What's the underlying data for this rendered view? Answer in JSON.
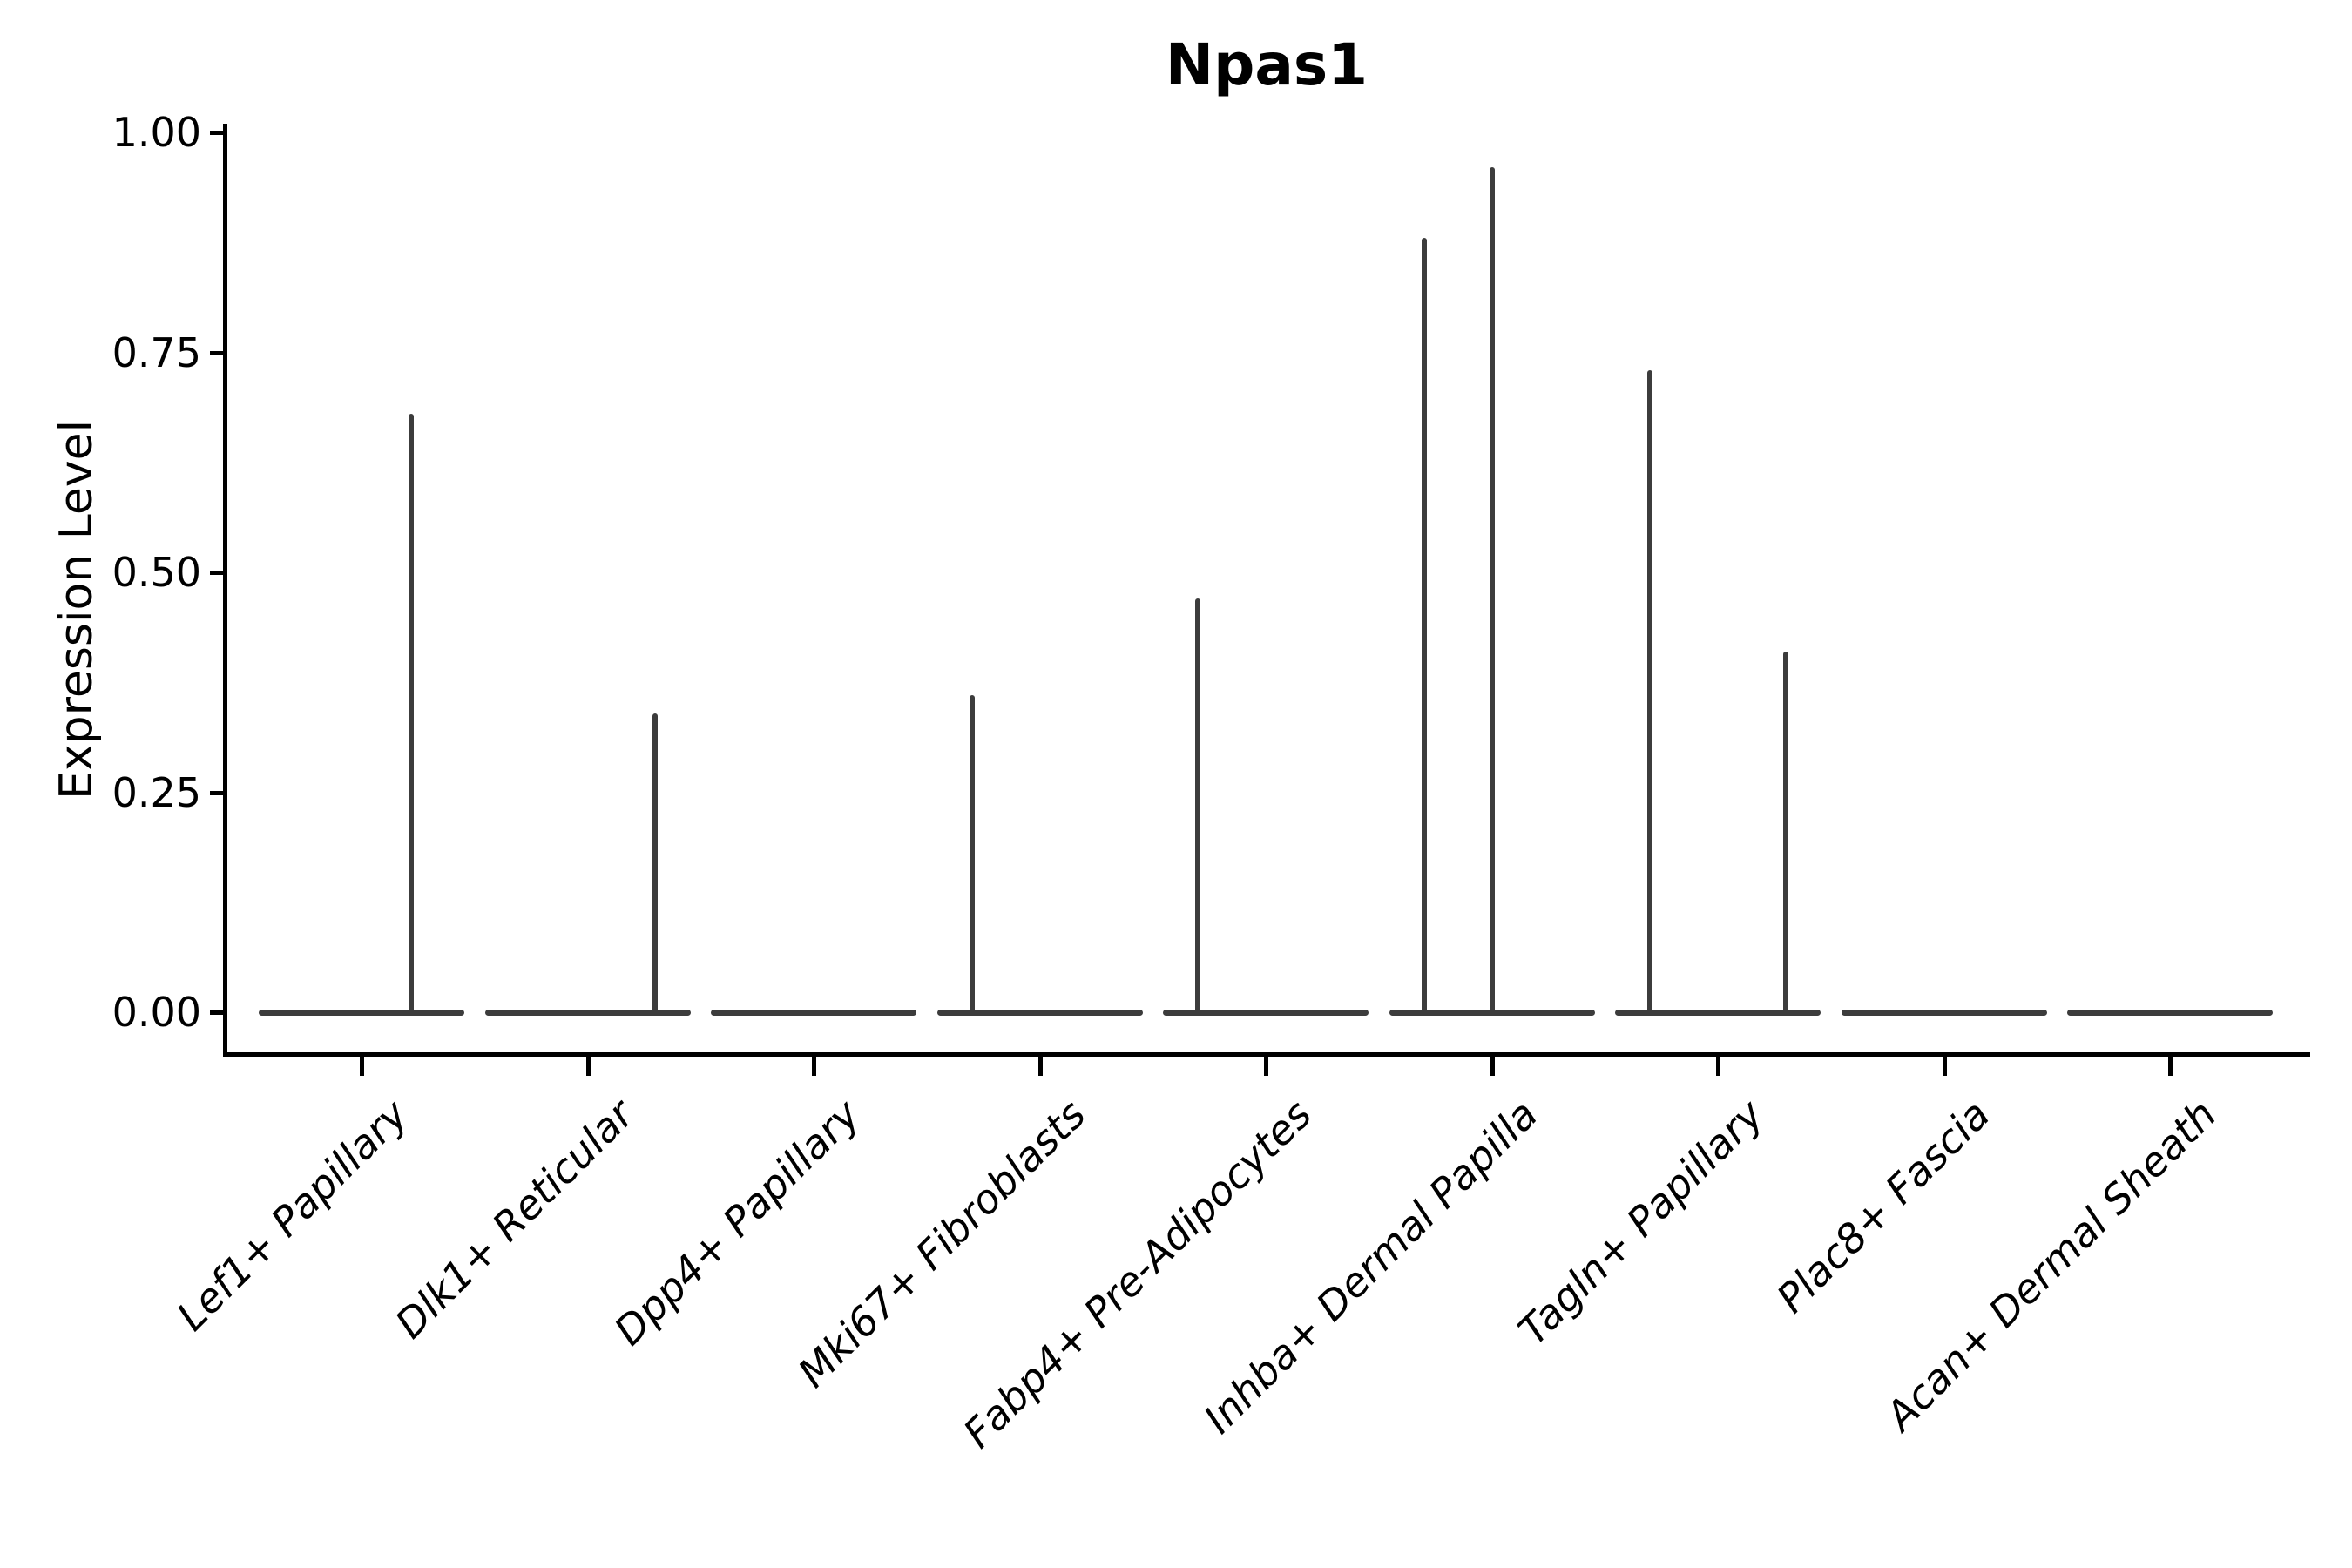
{
  "figure": {
    "title": "Npas1",
    "background": "#ffffff"
  },
  "chart_data": {
    "type": "violin",
    "title": "Npas1",
    "xlabel": "",
    "ylabel": "Expression Level",
    "ylim": [
      0,
      1.0
    ],
    "yticks": [
      1.0,
      0.75,
      0.5,
      0.25,
      0.0
    ],
    "ytick_labels": [
      "1.00",
      "0.75",
      "0.50",
      "0.25",
      "0.00"
    ],
    "grid": false,
    "legend": "none",
    "categories": [
      "Lef1+ Papillary",
      "Dlk1+ Reticular",
      "Dpp4+ Papillary",
      "Mki67+ Fibroblasts",
      "Fabp4+ Pre-Adipocytes",
      "Inhba+ Dermal Papilla",
      "Tagln+ Papillary",
      "Plac8+ Fascia",
      "Acan+ Dermal Sheath"
    ],
    "series": [
      {
        "category": "Lef1+ Papillary",
        "baseline_value": 0,
        "max_expression": 0.68,
        "spikes": [
          {
            "value": 0.68,
            "dx_units": 0.22
          }
        ]
      },
      {
        "category": "Dlk1+ Reticular",
        "baseline_value": 0,
        "max_expression": 0.34,
        "spikes": [
          {
            "value": 0.34,
            "dx_units": 0.3
          }
        ]
      },
      {
        "category": "Dpp4+ Papillary",
        "baseline_value": 0,
        "max_expression": 0.0,
        "spikes": []
      },
      {
        "category": "Mki67+ Fibroblasts",
        "baseline_value": 0,
        "max_expression": 0.36,
        "spikes": [
          {
            "value": 0.36,
            "dx_units": -0.3
          }
        ]
      },
      {
        "category": "Fabp4+ Pre-Adipocytes",
        "baseline_value": 0,
        "max_expression": 0.47,
        "spikes": [
          {
            "value": 0.47,
            "dx_units": -0.3
          }
        ]
      },
      {
        "category": "Inhba+ Dermal Papilla",
        "baseline_value": 0,
        "max_expression": 0.96,
        "spikes": [
          {
            "value": 0.88,
            "dx_units": -0.3
          },
          {
            "value": 0.96,
            "dx_units": 0.0
          }
        ]
      },
      {
        "category": "Tagln+ Papillary",
        "baseline_value": 0,
        "max_expression": 0.73,
        "spikes": [
          {
            "value": 0.73,
            "dx_units": -0.3
          },
          {
            "value": 0.41,
            "dx_units": 0.3
          }
        ]
      },
      {
        "category": "Plac8+ Fascia",
        "baseline_value": 0,
        "max_expression": 0.0,
        "spikes": []
      },
      {
        "category": "Acan+ Dermal Sheath",
        "baseline_value": 0,
        "max_expression": 0.0,
        "spikes": []
      }
    ],
    "colors": {
      "violin_stroke": "#3c3c3c",
      "axis": "#000000",
      "text": "#000000",
      "background": "#ffffff"
    }
  }
}
